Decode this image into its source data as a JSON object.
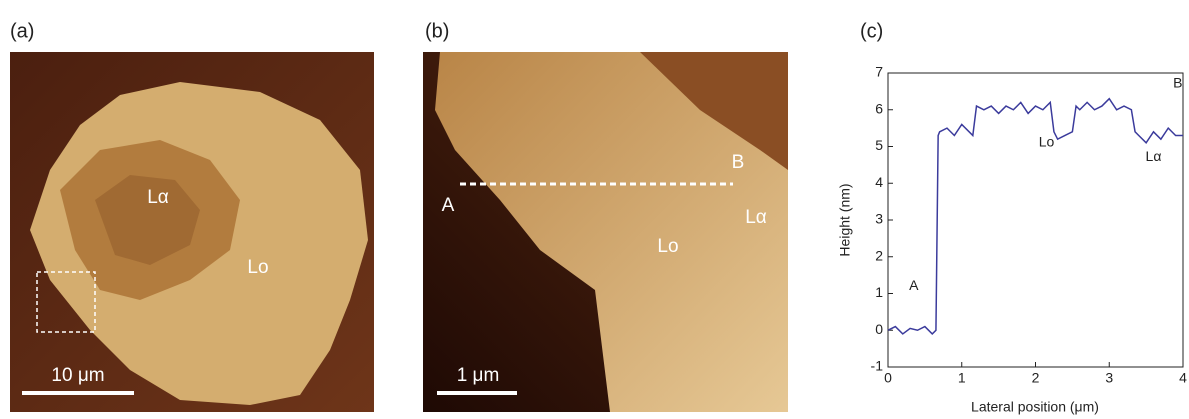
{
  "images": [
    {
      "label": "(a)",
      "phases": [
        "Lα",
        "Lo"
      ],
      "scale_bar": "10 μm"
    },
    {
      "label": "(b)",
      "points": [
        "A",
        "B"
      ],
      "phases": [
        "Lα",
        "Lo"
      ],
      "scale_bar": "1 μm"
    }
  ],
  "chart_data": {
    "type": "line",
    "label": "(c)",
    "x_label": "Lateral position (μm)",
    "y_label": "Height (nm)",
    "xlim": [
      0,
      4
    ],
    "ylim": [
      -1,
      7
    ],
    "xticks": [
      0,
      1,
      2,
      3,
      4
    ],
    "yticks": [
      -1,
      0,
      1,
      2,
      3,
      4,
      5,
      6,
      7
    ],
    "annotations": [
      "A",
      "Lo",
      "Lα",
      "B"
    ],
    "series": [
      {
        "color": "#3b3b9c",
        "x": [
          0,
          0.1,
          0.2,
          0.3,
          0.4,
          0.5,
          0.6,
          0.65,
          0.68,
          0.7,
          0.8,
          0.9,
          1.0,
          1.1,
          1.15,
          1.2,
          1.3,
          1.4,
          1.5,
          1.6,
          1.7,
          1.8,
          1.9,
          2.0,
          2.1,
          2.2,
          2.25,
          2.3,
          2.4,
          2.5,
          2.55,
          2.6,
          2.7,
          2.8,
          2.9,
          3.0,
          3.1,
          3.2,
          3.3,
          3.35,
          3.4,
          3.5,
          3.6,
          3.7,
          3.8,
          3.9,
          4.0
        ],
        "values": [
          0.0,
          0.1,
          -0.1,
          0.05,
          0.0,
          0.1,
          -0.1,
          0.0,
          5.3,
          5.4,
          5.5,
          5.3,
          5.6,
          5.4,
          5.3,
          6.1,
          6.0,
          6.1,
          5.9,
          6.1,
          6.0,
          6.2,
          5.9,
          6.1,
          6.0,
          6.2,
          5.4,
          5.2,
          5.3,
          5.4,
          6.1,
          6.0,
          6.2,
          6.0,
          6.1,
          6.3,
          6.0,
          6.1,
          6.0,
          5.4,
          5.3,
          5.1,
          5.4,
          5.2,
          5.5,
          5.3,
          5.3
        ]
      }
    ]
  }
}
